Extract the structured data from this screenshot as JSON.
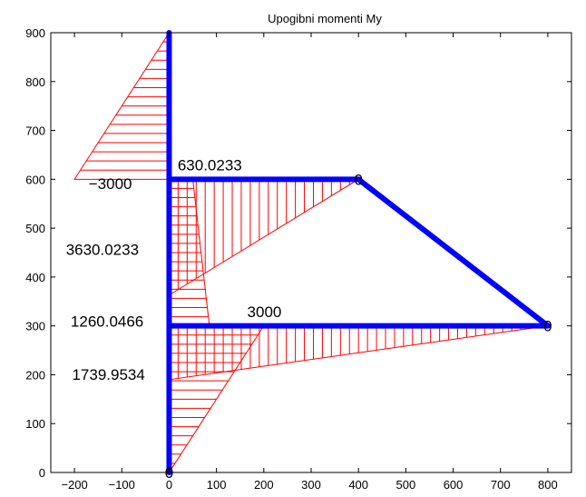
{
  "chart_data": {
    "type": "line",
    "title": "Upogibni momenti My",
    "xlabel": "",
    "ylabel": "",
    "xlim": [
      -250,
      850
    ],
    "ylim": [
      0,
      900
    ],
    "xticks": [
      -200,
      -100,
      0,
      100,
      200,
      300,
      400,
      500,
      600,
      700,
      800
    ],
    "yticks": [
      0,
      100,
      200,
      300,
      400,
      500,
      600,
      700,
      800,
      900
    ],
    "grid": false,
    "colors": {
      "frame": "#0000ff",
      "moment": "#ff0000",
      "axes": "#000000"
    },
    "frame_members": [
      {
        "x": [
          0,
          0
        ],
        "y": [
          0,
          900
        ]
      },
      {
        "x": [
          0,
          400
        ],
        "y": [
          600,
          600
        ]
      },
      {
        "x": [
          400,
          800
        ],
        "y": [
          600,
          300
        ]
      },
      {
        "x": [
          0,
          800
        ],
        "y": [
          300,
          300
        ]
      }
    ],
    "moment_diagrams": [
      {
        "outline": [
          [
            0,
            900
          ],
          [
            -200,
            600
          ],
          [
            0,
            600
          ]
        ],
        "hatch": "horizontal"
      },
      {
        "outline": [
          [
            0,
            600
          ],
          [
            50,
            600
          ],
          [
            85,
            300
          ],
          [
            0,
            300
          ]
        ],
        "hatch": "horizontal"
      },
      {
        "outline": [
          [
            0,
            300
          ],
          [
            200,
            300
          ],
          [
            0,
            0
          ]
        ],
        "hatch": "horizontal"
      },
      {
        "outline": [
          [
            0,
            600
          ],
          [
            400,
            600
          ],
          [
            0,
            363
          ]
        ],
        "hatch": "vertical"
      },
      {
        "outline": [
          [
            0,
            300
          ],
          [
            800,
            300
          ],
          [
            0,
            190
          ]
        ],
        "hatch": "vertical"
      }
    ],
    "annotations": [
      {
        "text": "630.0233",
        "x": 18,
        "y": 618
      },
      {
        "text": "−3000",
        "x": -170,
        "y": 580
      },
      {
        "text": "3630.0233",
        "x": -218,
        "y": 445
      },
      {
        "text": "1260.0466",
        "x": -208,
        "y": 298
      },
      {
        "text": "3000",
        "x": 165,
        "y": 318
      },
      {
        "text": "1739.9534",
        "x": -205,
        "y": 190
      }
    ],
    "node_labels": [
      {
        "text": "0",
        "x": 400,
        "y": 600
      },
      {
        "text": "0",
        "x": 800,
        "y": 300
      },
      {
        "text": "0",
        "x": 0,
        "y": 0
      }
    ]
  }
}
